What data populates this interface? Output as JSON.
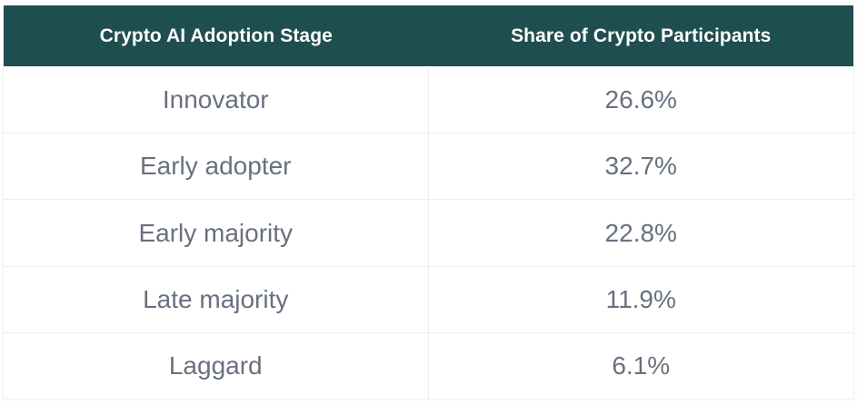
{
  "table": {
    "columns": [
      {
        "label": "Crypto AI Adoption Stage"
      },
      {
        "label": "Share of Crypto Participants"
      }
    ],
    "rows": [
      {
        "stage": "Innovator",
        "share": "26.6%"
      },
      {
        "stage": "Early adopter",
        "share": "32.7%"
      },
      {
        "stage": "Early majority",
        "share": "22.8%"
      },
      {
        "stage": "Late majority",
        "share": "11.9%"
      },
      {
        "stage": "Laggard",
        "share": "6.1%"
      }
    ]
  },
  "colors": {
    "header_bg": "#1f4e50",
    "header_text": "#ffffff",
    "body_text": "#69707f",
    "divider": "#ededf1"
  },
  "chart_data": {
    "type": "table",
    "title": "",
    "columns": [
      "Crypto AI Adoption Stage",
      "Share of Crypto Participants"
    ],
    "categories": [
      "Innovator",
      "Early adopter",
      "Early majority",
      "Late majority",
      "Laggard"
    ],
    "values": [
      26.6,
      32.7,
      22.8,
      11.9,
      6.1
    ],
    "value_unit": "percent",
    "legend_position": "none",
    "grid": "row-and-column-dividers"
  }
}
